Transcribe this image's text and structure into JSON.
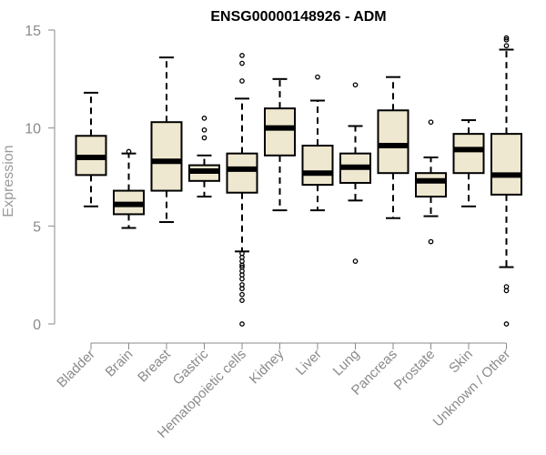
{
  "chart_data": {
    "type": "boxplot",
    "title": "ENSG00000148926 - ADM",
    "xlabel": "",
    "ylabel": "Expression",
    "ylim": [
      0,
      15
    ],
    "yticks": [
      0,
      5,
      10,
      15
    ],
    "box_fill": "#efe8d0",
    "box_stroke": "#000000",
    "median_color": "#000000",
    "categories": [
      "Bladder",
      "Brain",
      "Breast",
      "Gastric",
      "Hematopoietic cells",
      "Kidney",
      "Liver",
      "Lung",
      "Pancreas",
      "Prostate",
      "Skin",
      "Unknown / Other"
    ],
    "boxes": [
      {
        "name": "Bladder",
        "whisker_low": 6.0,
        "q1": 7.6,
        "median": 8.5,
        "q3": 9.6,
        "whisker_high": 11.8,
        "outliers": []
      },
      {
        "name": "Brain",
        "whisker_low": 4.9,
        "q1": 5.6,
        "median": 6.1,
        "q3": 6.8,
        "whisker_high": 8.7,
        "outliers": [
          8.8
        ]
      },
      {
        "name": "Breast",
        "whisker_low": 5.2,
        "q1": 6.8,
        "median": 8.3,
        "q3": 10.3,
        "whisker_high": 13.6,
        "outliers": []
      },
      {
        "name": "Gastric",
        "whisker_low": 6.5,
        "q1": 7.3,
        "median": 7.8,
        "q3": 8.1,
        "whisker_high": 8.6,
        "outliers": [
          9.5,
          9.9,
          10.5
        ]
      },
      {
        "name": "Hematopoietic cells",
        "whisker_low": 3.7,
        "q1": 6.7,
        "median": 7.9,
        "q3": 8.7,
        "whisker_high": 11.5,
        "outliers": [
          0.0,
          1.2,
          1.5,
          1.8,
          2.0,
          2.3,
          2.5,
          2.7,
          2.9,
          3.0,
          3.2,
          3.4,
          3.6,
          12.4,
          13.3,
          13.7
        ]
      },
      {
        "name": "Kidney",
        "whisker_low": 5.8,
        "q1": 8.6,
        "median": 10.0,
        "q3": 11.0,
        "whisker_high": 12.5,
        "outliers": []
      },
      {
        "name": "Liver",
        "whisker_low": 5.8,
        "q1": 7.1,
        "median": 7.7,
        "q3": 9.1,
        "whisker_high": 11.4,
        "outliers": [
          12.6
        ]
      },
      {
        "name": "Lung",
        "whisker_low": 6.3,
        "q1": 7.2,
        "median": 8.0,
        "q3": 8.7,
        "whisker_high": 10.1,
        "outliers": [
          3.2,
          12.2
        ]
      },
      {
        "name": "Pancreas",
        "whisker_low": 5.4,
        "q1": 7.7,
        "median": 9.1,
        "q3": 10.9,
        "whisker_high": 12.6,
        "outliers": []
      },
      {
        "name": "Prostate",
        "whisker_low": 5.5,
        "q1": 6.5,
        "median": 7.3,
        "q3": 7.7,
        "whisker_high": 8.5,
        "outliers": [
          4.2,
          10.3
        ]
      },
      {
        "name": "Skin",
        "whisker_low": 6.0,
        "q1": 7.7,
        "median": 8.9,
        "q3": 9.7,
        "whisker_high": 10.4,
        "outliers": []
      },
      {
        "name": "Unknown / Other",
        "whisker_low": 2.9,
        "q1": 6.6,
        "median": 7.6,
        "q3": 9.7,
        "whisker_high": 14.0,
        "outliers": [
          0.0,
          1.7,
          1.9,
          14.2,
          14.5,
          14.6
        ]
      }
    ]
  }
}
